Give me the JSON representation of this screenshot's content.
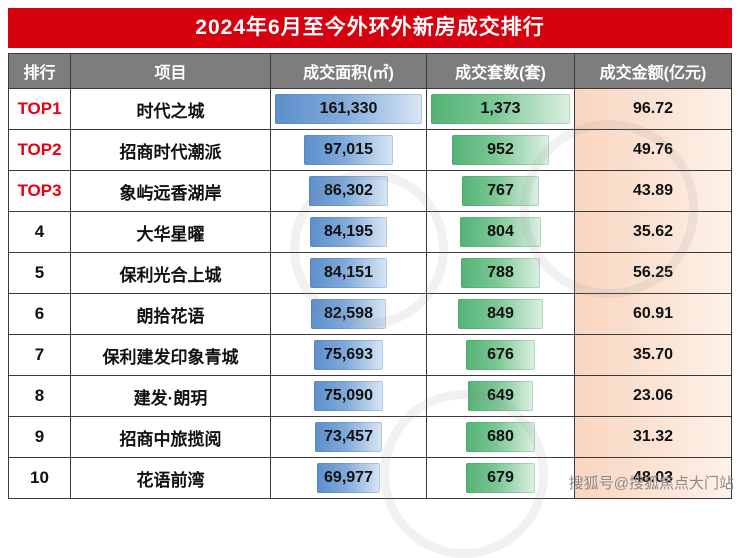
{
  "title": "2024年6月至今外环外新房成交排行",
  "watermark": "搜狐号@搜狐焦点大门站",
  "colors": {
    "title_bg": "#d7000e",
    "header_bg": "#7d7d7d",
    "top_rank_text": "#e50012",
    "area_bar": "#5d8fcb",
    "units_bar": "#54b377",
    "amount_bg": "#f9d6c1"
  },
  "chart_data": {
    "type": "table",
    "title": "2024年6月至今外环外新房成交排行",
    "columns": [
      "排行",
      "项目",
      "成交面积(㎡)",
      "成交套数(套)",
      "成交金额(亿元)"
    ],
    "rows": [
      {
        "rank": "TOP1",
        "project": "时代之城",
        "area": "161,330",
        "area_val": 161330,
        "units": "1,373",
        "units_val": 1373,
        "amount": "96.72"
      },
      {
        "rank": "TOP2",
        "project": "招商时代潮派",
        "area": "97,015",
        "area_val": 97015,
        "units": "952",
        "units_val": 952,
        "amount": "49.76"
      },
      {
        "rank": "TOP3",
        "project": "象屿远香湖岸",
        "area": "86,302",
        "area_val": 86302,
        "units": "767",
        "units_val": 767,
        "amount": "43.89"
      },
      {
        "rank": "4",
        "project": "大华星曜",
        "area": "84,195",
        "area_val": 84195,
        "units": "804",
        "units_val": 804,
        "amount": "35.62"
      },
      {
        "rank": "5",
        "project": "保利光合上城",
        "area": "84,151",
        "area_val": 84151,
        "units": "788",
        "units_val": 788,
        "amount": "56.25"
      },
      {
        "rank": "6",
        "project": "朗拾花语",
        "area": "82,598",
        "area_val": 82598,
        "units": "849",
        "units_val": 849,
        "amount": "60.91"
      },
      {
        "rank": "7",
        "project": "保利建发印象青城",
        "area": "75,693",
        "area_val": 75693,
        "units": "676",
        "units_val": 676,
        "amount": "35.70"
      },
      {
        "rank": "8",
        "project": "建发·朗玥",
        "area": "75,090",
        "area_val": 75090,
        "units": "649",
        "units_val": 649,
        "amount": "23.06"
      },
      {
        "rank": "9",
        "project": "招商中旅揽阅",
        "area": "73,457",
        "area_val": 73457,
        "units": "680",
        "units_val": 680,
        "amount": "31.32"
      },
      {
        "rank": "10",
        "project": "花语前湾",
        "area": "69,977",
        "area_val": 69977,
        "units": "679",
        "units_val": 679,
        "amount": "48.03"
      }
    ]
  }
}
